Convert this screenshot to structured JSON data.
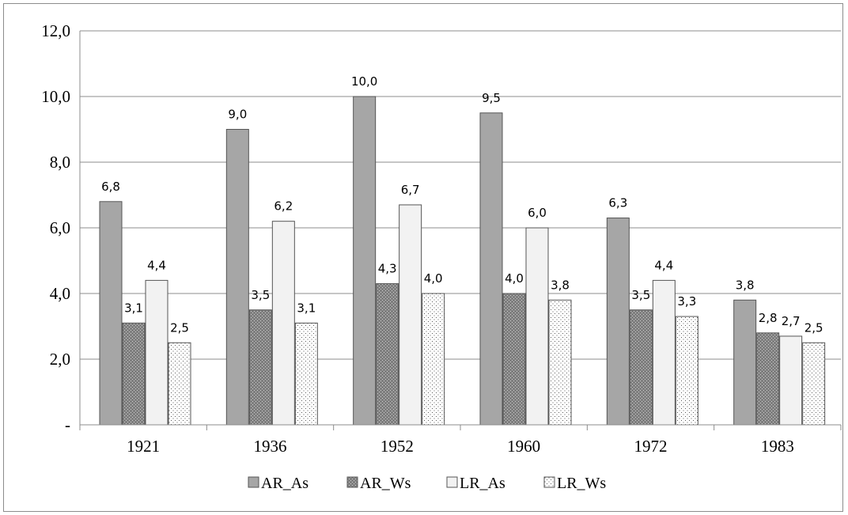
{
  "chart_data": {
    "type": "bar",
    "title": "",
    "xlabel": "",
    "ylabel": "",
    "categories": [
      "1921",
      "1936",
      "1952",
      "1960",
      "1972",
      "1983"
    ],
    "series": [
      {
        "name": "AR_As",
        "values": [
          6.8,
          9.0,
          10.0,
          9.5,
          6.3,
          3.8
        ],
        "labels": [
          "6,8",
          "9,0",
          "10,0",
          "9,5",
          "6,3",
          "3,8"
        ],
        "pattern": "solid-dark",
        "color": "#a6a6a6"
      },
      {
        "name": "AR_Ws",
        "values": [
          3.1,
          3.5,
          4.3,
          4.0,
          3.5,
          2.8
        ],
        "labels": [
          "3,1",
          "3,5",
          "4,3",
          "4,0",
          "3,5",
          "2,8"
        ],
        "pattern": "crosshatch",
        "color": "#8c8c8c"
      },
      {
        "name": "LR_As",
        "values": [
          4.4,
          6.2,
          6.7,
          6.0,
          4.4,
          2.7
        ],
        "labels": [
          "4,4",
          "6,2",
          "6,7",
          "6,0",
          "4,4",
          "2,7"
        ],
        "pattern": "solid-light",
        "color": "#f2f2f2"
      },
      {
        "name": "LR_Ws",
        "values": [
          2.5,
          3.1,
          4.0,
          3.8,
          3.3,
          2.5
        ],
        "labels": [
          "2,5",
          "3,1",
          "4,0",
          "3,8",
          "3,3",
          "2,5"
        ],
        "pattern": "dots",
        "color": "#ffffff"
      }
    ],
    "ylim": [
      0,
      12
    ],
    "yticks": [
      0,
      2,
      4,
      6,
      8,
      10,
      12
    ],
    "ytick_labels": [
      "-",
      "2,0",
      "4,0",
      "6,0",
      "8,0",
      "10,0",
      "12,0"
    ],
    "grid": true,
    "legend_position": "bottom"
  }
}
